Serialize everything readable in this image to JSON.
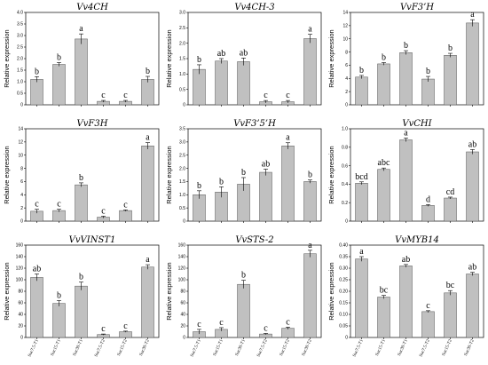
{
  "common": {
    "ylabel": "Relative expression",
    "categories": [
      "Suc7.5-T1",
      "Suc15-T1",
      "Suc30-T1",
      "Suc7.5-T2",
      "Suc15-T2",
      "Suc30-T2"
    ],
    "bar_color": "#c0c0c0"
  },
  "chart_data": [
    {
      "type": "bar",
      "title": "Vv4CH",
      "ylabel": "Relative expression",
      "categories": [
        "Suc7.5-T1",
        "Suc15-T1",
        "Suc30-T1",
        "Suc7.5-T2",
        "Suc15-T2",
        "Suc30-T2"
      ],
      "values": [
        1.1,
        1.75,
        2.85,
        0.15,
        0.15,
        1.1
      ],
      "errors": [
        0.12,
        0.08,
        0.22,
        0.04,
        0.04,
        0.13
      ],
      "letters": [
        "b",
        "b",
        "a",
        "c",
        "c",
        "b"
      ],
      "ylim": [
        0,
        4
      ],
      "yticks": [
        0,
        0.5,
        1.0,
        1.5,
        2.0,
        2.5,
        3.0,
        3.5,
        4.0
      ],
      "ytick_labels": [
        "0",
        "0.5",
        "1.0",
        "1.5",
        "2.0",
        "2.5",
        "3.0",
        "3.5",
        "4.0"
      ]
    },
    {
      "type": "bar",
      "title": "Vv4CH-3",
      "ylabel": "Relative expression",
      "categories": [
        "Suc7.5-T1",
        "Suc15-T1",
        "Suc30-T1",
        "Suc7.5-T2",
        "Suc15-T2",
        "Suc30-T2"
      ],
      "values": [
        1.15,
        1.42,
        1.4,
        0.1,
        0.1,
        2.15
      ],
      "errors": [
        0.15,
        0.08,
        0.12,
        0.04,
        0.04,
        0.14
      ],
      "letters": [
        "b",
        "ab",
        "ab",
        "c",
        "c",
        "a"
      ],
      "ylim": [
        0,
        3.0
      ],
      "yticks": [
        0,
        0.5,
        1.0,
        1.5,
        2.0,
        2.5,
        3.0
      ],
      "ytick_labels": [
        "0",
        "0.5",
        "1.0",
        "1.5",
        "2.0",
        "2.5",
        "3.0"
      ]
    },
    {
      "type": "bar",
      "title": "VvF3’H",
      "ylabel": "Relative expression",
      "categories": [
        "Suc7.5-T1",
        "Suc15-T1",
        "Suc30-T1",
        "Suc7.5-T2",
        "Suc15-T2",
        "Suc30-T2"
      ],
      "values": [
        4.2,
        6.2,
        7.9,
        3.9,
        7.5,
        12.4
      ],
      "errors": [
        0.25,
        0.2,
        0.3,
        0.4,
        0.3,
        0.5
      ],
      "letters": [
        "b",
        "b",
        "b",
        "b",
        "b",
        "a"
      ],
      "ylim": [
        0,
        14
      ],
      "yticks": [
        0,
        2,
        4,
        6,
        8,
        10,
        12,
        14
      ],
      "ytick_labels": [
        "0",
        "2",
        "4",
        "6",
        "8",
        "10",
        "12",
        "14"
      ]
    },
    {
      "type": "bar",
      "title": "VvF3H",
      "ylabel": "Relative expression",
      "categories": [
        "Suc7.5-T1",
        "Suc15-T1",
        "Suc30-T1",
        "Suc7.5-T2",
        "Suc15-T2",
        "Suc30-T2"
      ],
      "values": [
        1.5,
        1.6,
        5.5,
        0.6,
        1.6,
        11.4
      ],
      "errors": [
        0.3,
        0.2,
        0.3,
        0.15,
        0.1,
        0.5
      ],
      "letters": [
        "c",
        "c",
        "b",
        "c",
        "c",
        "a"
      ],
      "ylim": [
        0,
        14
      ],
      "yticks": [
        0,
        2,
        4,
        6,
        8,
        10,
        12,
        14
      ],
      "ytick_labels": [
        "0",
        "2",
        "4",
        "6",
        "8",
        "10",
        "12",
        "14"
      ]
    },
    {
      "type": "bar",
      "title": "VvF3’5’H",
      "ylabel": "Relative expression",
      "categories": [
        "Suc7.5-T1",
        "Suc15-T1",
        "Suc30-T1",
        "Suc7.5-T2",
        "Suc15-T2",
        "Suc30-T2"
      ],
      "values": [
        1.0,
        1.1,
        1.4,
        1.85,
        2.85,
        1.5
      ],
      "errors": [
        0.15,
        0.2,
        0.25,
        0.12,
        0.12,
        0.06
      ],
      "letters": [
        "b",
        "b",
        "b",
        "ab",
        "a",
        "b"
      ],
      "ylim": [
        0,
        3.5
      ],
      "yticks": [
        0,
        0.5,
        1.0,
        1.5,
        2.0,
        2.5,
        3.0,
        3.5
      ],
      "ytick_labels": [
        "0",
        "0.5",
        "1.0",
        "1.5",
        "2.0",
        "2.5",
        "3.0",
        "3.5"
      ]
    },
    {
      "type": "bar",
      "title": "VvCHI",
      "ylabel": "Relative expression",
      "categories": [
        "Suc7.5-T1",
        "Suc15-T1",
        "Suc30-T1",
        "Suc7.5-T2",
        "Suc15-T2",
        "Suc30-T2"
      ],
      "values": [
        0.41,
        0.56,
        0.88,
        0.17,
        0.25,
        0.75
      ],
      "errors": [
        0.015,
        0.015,
        0.02,
        0.01,
        0.01,
        0.025
      ],
      "letters": [
        "bcd",
        "abc",
        "a",
        "d",
        "cd",
        "ab"
      ],
      "ylim": [
        0,
        1.0
      ],
      "yticks": [
        0,
        0.2,
        0.4,
        0.6,
        0.8,
        1.0
      ],
      "ytick_labels": [
        "0",
        "0.2",
        "0.4",
        "0.6",
        "0.8",
        "1.0"
      ]
    },
    {
      "type": "bar",
      "title": "VvVINST1",
      "ylabel": "Relative expression",
      "categories": [
        "Suc7.5-T1",
        "Suc15-T1",
        "Suc30-T1",
        "Suc7.5-T2",
        "Suc15-T2",
        "Suc30-T2"
      ],
      "values": [
        104,
        59,
        89,
        5,
        10,
        122
      ],
      "errors": [
        6,
        5,
        7,
        1,
        1,
        4
      ],
      "letters": [
        "ab",
        "b",
        "b",
        "c",
        "c",
        "a"
      ],
      "ylim": [
        0,
        160
      ],
      "yticks": [
        0,
        20,
        40,
        60,
        80,
        100,
        120,
        140,
        160
      ],
      "ytick_labels": [
        "0",
        "20",
        "40",
        "60",
        "80",
        "100",
        "120",
        "140",
        "160"
      ]
    },
    {
      "type": "bar",
      "title": "VvSTS-2",
      "ylabel": "Relative expression",
      "categories": [
        "Suc7.5-T1",
        "Suc15-T1",
        "Suc30-T1",
        "Suc7.5-T2",
        "Suc15-T2",
        "Suc30-T2"
      ],
      "values": [
        10,
        14,
        92,
        6,
        16,
        145
      ],
      "errors": [
        4,
        3,
        7,
        1,
        2,
        6
      ],
      "letters": [
        "c",
        "c",
        "b",
        "c",
        "c",
        "a"
      ],
      "ylim": [
        0,
        160
      ],
      "yticks": [
        0,
        20,
        40,
        60,
        80,
        100,
        120,
        140,
        160
      ],
      "ytick_labels": [
        "0",
        "20",
        "40",
        "60",
        "80",
        "100",
        "120",
        "140",
        "160"
      ]
    },
    {
      "type": "bar",
      "title": "VvMYB14",
      "ylabel": "Relative expression",
      "categories": [
        "Suc7.5-T1",
        "Suc15-T1",
        "Suc30-T1",
        "Suc7.5-T2",
        "Suc15-T2",
        "Suc30-T2"
      ],
      "values": [
        0.34,
        0.175,
        0.31,
        0.112,
        0.193,
        0.275
      ],
      "errors": [
        0.01,
        0.007,
        0.006,
        0.004,
        0.01,
        0.007
      ],
      "letters": [
        "a",
        "bc",
        "ab",
        "c",
        "bc",
        "ab"
      ],
      "ylim": [
        0,
        0.4
      ],
      "yticks": [
        0,
        0.05,
        0.1,
        0.15,
        0.2,
        0.25,
        0.3,
        0.35,
        0.4
      ],
      "ytick_labels": [
        "0",
        "0.05",
        "0.10",
        "0.15",
        "0.20",
        "0.25",
        "0.30",
        "0.35",
        "0.40"
      ]
    }
  ]
}
